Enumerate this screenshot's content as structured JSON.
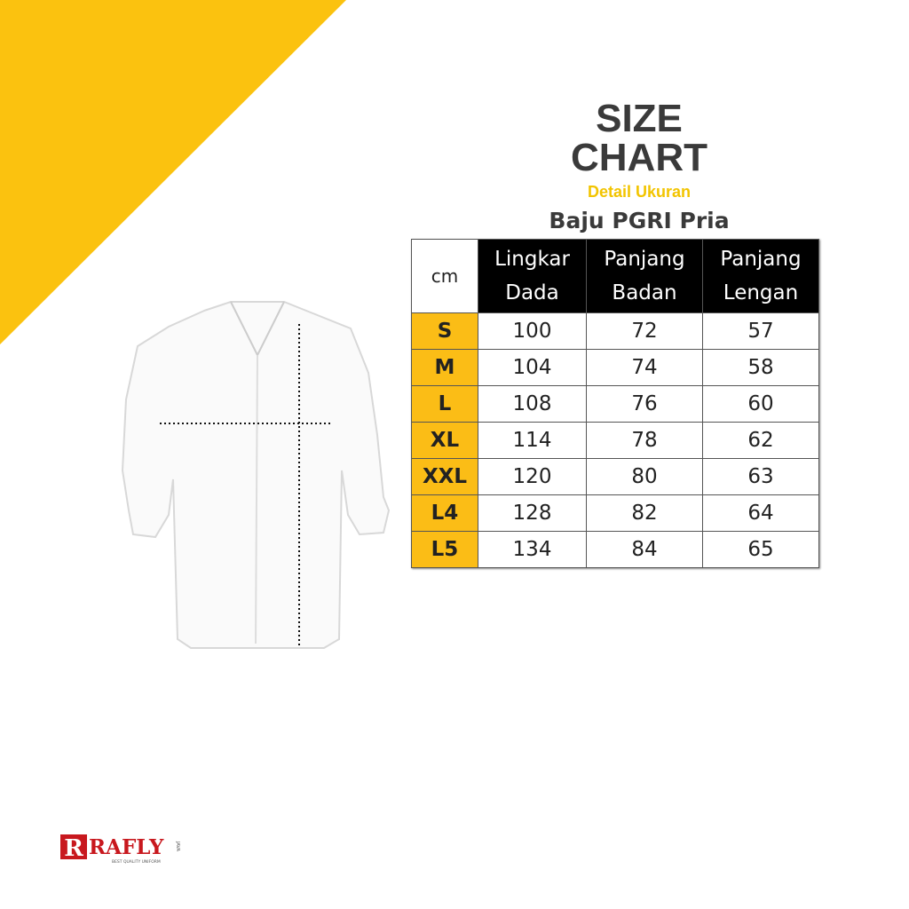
{
  "colors": {
    "accent": "#fbbd16",
    "text": "#3a3a3a",
    "header_bg": "#000000"
  },
  "title": {
    "line1": "SIZE",
    "line2": "CHART",
    "subtitle": "Detail Ukuran",
    "product": "Baju PGRI Pria"
  },
  "table": {
    "unit": "cm",
    "headers": [
      [
        "Lingkar",
        "Dada"
      ],
      [
        "Panjang",
        "Badan"
      ],
      [
        "Panjang",
        "Lengan"
      ]
    ],
    "rows": [
      {
        "size": "S",
        "values": [
          "100",
          "72",
          "57"
        ]
      },
      {
        "size": "M",
        "values": [
          "104",
          "74",
          "58"
        ]
      },
      {
        "size": "L",
        "values": [
          "108",
          "76",
          "60"
        ]
      },
      {
        "size": "XL",
        "values": [
          "114",
          "78",
          "62"
        ]
      },
      {
        "size": "XXL",
        "values": [
          "120",
          "80",
          "63"
        ]
      },
      {
        "size": "L4",
        "values": [
          "128",
          "82",
          "64"
        ]
      },
      {
        "size": "L5",
        "values": [
          "134",
          "84",
          "65"
        ]
      }
    ]
  },
  "logo": {
    "mark": "R",
    "name": "RAFLY",
    "tagline": "BEST QUALITY UNIFORM",
    "region": "JAVA"
  }
}
